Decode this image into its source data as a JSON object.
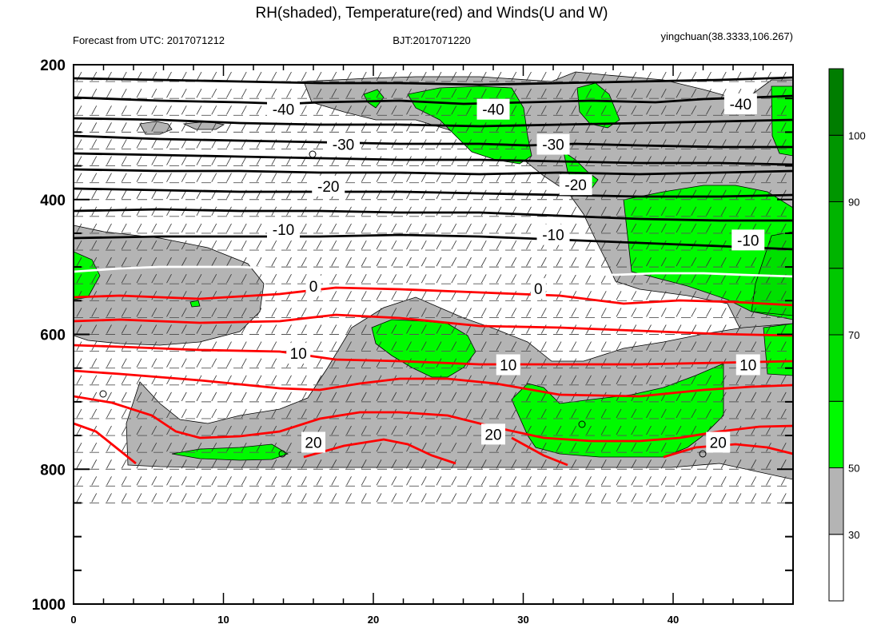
{
  "chart_data": {
    "type": "contour",
    "title": "RH(shaded), Temperature(red) and Winds(U and W)",
    "info_left": "Forecast from UTC: 2017071212",
    "info_center": "BJT:2017071220",
    "info_right": "yingchuan(38.3333,106.267)",
    "x_ticks": [
      0,
      10,
      20,
      30,
      40
    ],
    "x_range": [
      0,
      48
    ],
    "y_ticks": [
      200,
      400,
      600,
      800,
      1000
    ],
    "y_range": [
      200,
      1000
    ],
    "y_reversed": true,
    "colorbar": {
      "ticks": [
        30,
        50,
        70,
        90,
        100
      ],
      "levels": [
        0,
        30,
        50,
        60,
        70,
        80,
        90,
        100,
        110
      ],
      "colors": [
        "#ffffff",
        "#b4b4b4",
        "#00fa00",
        "#00e000",
        "#00c800",
        "#00b400",
        "#009600",
        "#007d00"
      ]
    },
    "rh_shading": {
      "gray": "#b4b4b4",
      "green": "#00fa00",
      "dark_green": "#00c800"
    },
    "temperature_contours": {
      "black_levels": [
        -40,
        -30,
        -20,
        -10
      ],
      "zero_level": 0,
      "red_levels": [
        10,
        20
      ],
      "black_color": "#000000",
      "zero_color": "#ffffff",
      "red_color": "#ff0000"
    },
    "contour_labels": [
      {
        "text": "-40",
        "x": 14,
        "y": 266
      },
      {
        "text": "-40",
        "x": 28,
        "y": 266
      },
      {
        "text": "-40",
        "x": 44.5,
        "y": 258
      },
      {
        "text": "-30",
        "x": 18,
        "y": 318
      },
      {
        "text": "-30",
        "x": 32,
        "y": 318
      },
      {
        "text": "-20",
        "x": 17,
        "y": 380
      },
      {
        "text": "-20",
        "x": 33.5,
        "y": 378
      },
      {
        "text": "-10",
        "x": 14,
        "y": 444
      },
      {
        "text": "-10",
        "x": 32,
        "y": 452
      },
      {
        "text": "-10",
        "x": 45,
        "y": 460
      },
      {
        "text": "0",
        "x": 16,
        "y": 528
      },
      {
        "text": "0",
        "x": 31,
        "y": 532
      },
      {
        "text": "10",
        "x": 15,
        "y": 628
      },
      {
        "text": "10",
        "x": 29,
        "y": 645
      },
      {
        "text": "10",
        "x": 45,
        "y": 645
      },
      {
        "text": "20",
        "x": 16,
        "y": 760
      },
      {
        "text": "20",
        "x": 28,
        "y": 748
      },
      {
        "text": "20",
        "x": 43,
        "y": 760
      }
    ]
  }
}
